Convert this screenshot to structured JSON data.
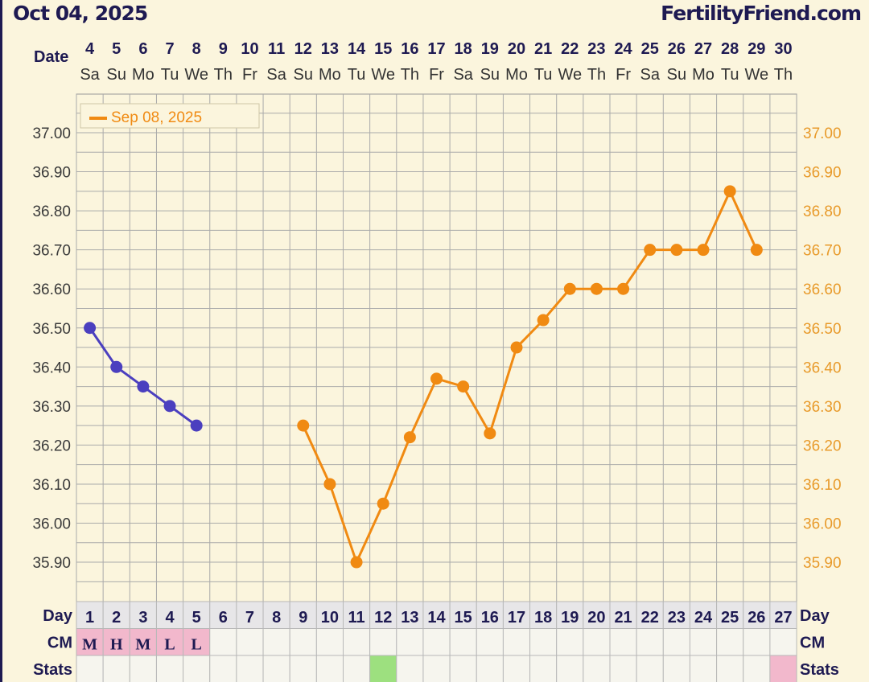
{
  "header": {
    "title": "Oct 04, 2025",
    "brand": "FertilityFriend.com"
  },
  "labels": {
    "date": "Date",
    "day": "Day",
    "cm": "CM",
    "stats": "Stats"
  },
  "colors": {
    "background": "#fbf5dd",
    "grid": "#aaaaaa",
    "current_series": "#4b3fbf",
    "previous_series": "#f08a12",
    "text_dark": "#1e1a52",
    "cm_pink": "#f2b8cc",
    "stats_green": "#9de07f",
    "stats_pink": "#f2b8cc",
    "cell_light": "#f6f5ee"
  },
  "chart_data": {
    "type": "line",
    "dates": [
      "4",
      "5",
      "6",
      "7",
      "8",
      "9",
      "10",
      "11",
      "12",
      "13",
      "14",
      "15",
      "16",
      "17",
      "18",
      "19",
      "20",
      "21",
      "22",
      "23",
      "24",
      "25",
      "26",
      "27",
      "28",
      "29",
      "30"
    ],
    "weekdays": [
      "Sa",
      "Su",
      "Mo",
      "Tu",
      "We",
      "Th",
      "Fr",
      "Sa",
      "Su",
      "Mo",
      "Tu",
      "We",
      "Th",
      "Fr",
      "Sa",
      "Su",
      "Mo",
      "Tu",
      "We",
      "Th",
      "Fr",
      "Sa",
      "Su",
      "Mo",
      "Tu",
      "We",
      "Th"
    ],
    "cycle_days": [
      "1",
      "2",
      "3",
      "4",
      "5",
      "6",
      "7",
      "8",
      "9",
      "10",
      "11",
      "12",
      "13",
      "14",
      "15",
      "16",
      "17",
      "18",
      "19",
      "20",
      "21",
      "22",
      "23",
      "24",
      "25",
      "26",
      "27"
    ],
    "ylim": [
      35.8,
      37.1
    ],
    "y_ticks": [
      "37.00",
      "36.90",
      "36.80",
      "36.70",
      "36.60",
      "36.50",
      "36.40",
      "36.30",
      "36.20",
      "36.10",
      "36.00",
      "35.90"
    ],
    "legend_position": "top-left",
    "grid": true,
    "series": [
      {
        "key": "current",
        "color": "#4b3fbf",
        "points": [
          [
            0,
            36.5
          ],
          [
            1,
            36.4
          ],
          [
            2,
            36.35
          ],
          [
            3,
            36.3
          ],
          [
            4,
            36.25
          ]
        ]
      },
      {
        "key": "previous",
        "name": "Sep 08, 2025",
        "color": "#f08a12",
        "points": [
          [
            8,
            36.25
          ],
          [
            9,
            36.1
          ],
          [
            10,
            35.9
          ],
          [
            11,
            36.05
          ],
          [
            12,
            36.22
          ],
          [
            13,
            36.37
          ],
          [
            14,
            36.35
          ],
          [
            15,
            36.23
          ],
          [
            16,
            36.45
          ],
          [
            17,
            36.52
          ],
          [
            18,
            36.6
          ],
          [
            19,
            36.6
          ],
          [
            20,
            36.6
          ],
          [
            21,
            36.7
          ],
          [
            22,
            36.7
          ],
          [
            23,
            36.7
          ],
          [
            24,
            36.85
          ],
          [
            25,
            36.7
          ]
        ]
      }
    ],
    "cm": [
      "M",
      "H",
      "M",
      "L",
      "L",
      "",
      "",
      "",
      "",
      "",
      "",
      "",
      "",
      "",
      "",
      "",
      "",
      "",
      "",
      "",
      "",
      "",
      "",
      "",
      "",
      "",
      ""
    ],
    "stats_fill": [
      "",
      "",
      "",
      "",
      "",
      "",
      "",
      "",
      "",
      "",
      "",
      "green",
      "",
      "",
      "",
      "",
      "",
      "",
      "",
      "",
      "",
      "",
      "",
      "",
      "",
      "",
      "pink"
    ]
  }
}
